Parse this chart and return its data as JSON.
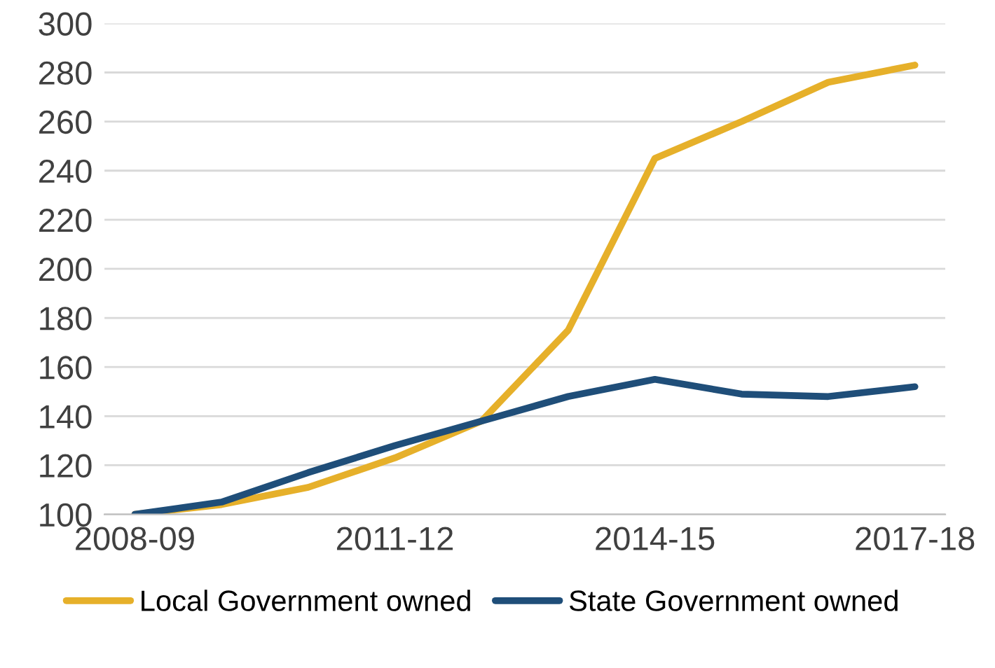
{
  "chart_data": {
    "type": "line",
    "categories": [
      "2008-09",
      null,
      null,
      "2011-12",
      null,
      null,
      "2014-15",
      null,
      null,
      "2017-18"
    ],
    "series": [
      {
        "name": "Local Government owned",
        "color": "#e6b02a",
        "values": [
          100,
          104,
          111,
          123,
          138,
          175,
          245,
          260,
          276,
          283
        ]
      },
      {
        "name": "State Government owned",
        "color": "#1f4e79",
        "values": [
          100,
          105,
          117,
          128,
          138,
          148,
          155,
          149,
          148,
          152
        ]
      }
    ],
    "ylim": [
      100,
      300
    ],
    "yticks": [
      100,
      120,
      140,
      160,
      180,
      200,
      220,
      240,
      260,
      280,
      300
    ],
    "grid": "y",
    "legend": "bottom",
    "marker": "none",
    "line_style": "solid"
  }
}
